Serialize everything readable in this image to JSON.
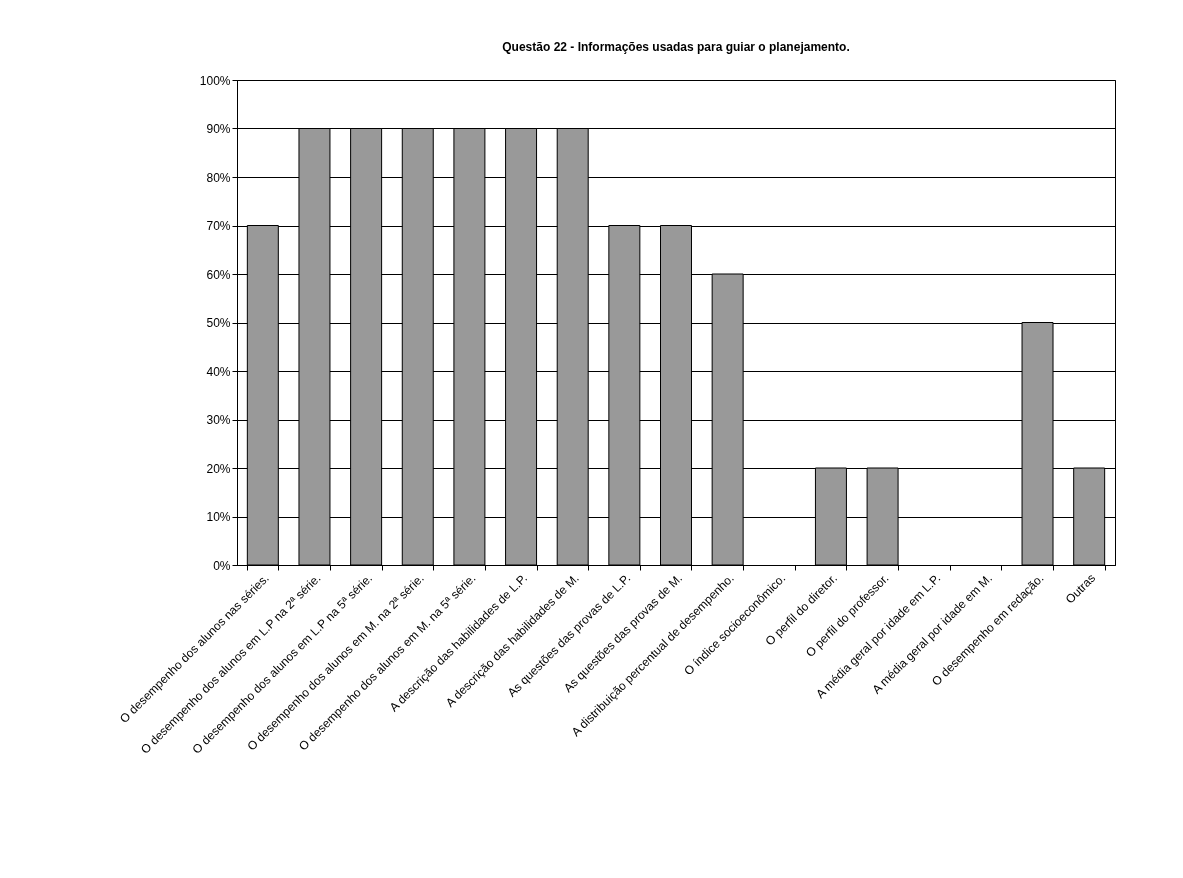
{
  "chart_data": {
    "type": "bar",
    "title": "Questão 22 - Informações usadas para guiar o planejamento.",
    "categories": [
      "O desempenho dos alunos nas séries.",
      "O desempenho dos alunos em L.P na 2ª série.",
      "O desempenho dos alunos em L.P na 5ª série.",
      "O desempenho dos alunos em M. na 2ª série.",
      "O desempenho dos alunos em M. na 5ª série.",
      "A descrição das habilidades de L.P.",
      "A descrição das habilidades de M.",
      "As questões das provas de L.P.",
      "As questões das provas de M.",
      "A distribuição percentual de desempenho.",
      "O índice socioeconômico.",
      "O perfil do diretor.",
      "O perfil do professor.",
      "A média geral por idade em L.P.",
      "A média geral por idade em M.",
      "O desempenho em redação.",
      "Outras"
    ],
    "values": [
      70,
      90,
      90,
      90,
      90,
      90,
      90,
      70,
      70,
      60,
      0,
      20,
      20,
      0,
      0,
      50,
      20
    ],
    "color": "#999999",
    "ylim": [
      0,
      100
    ],
    "yticks": [
      {
        "value": 0,
        "label": "0%"
      },
      {
        "value": 10,
        "label": "10%"
      },
      {
        "value": 20,
        "label": "20%"
      },
      {
        "value": 30,
        "label": "30%"
      },
      {
        "value": 40,
        "label": "40%"
      },
      {
        "value": 50,
        "label": "50%"
      },
      {
        "value": 60,
        "label": "60%"
      },
      {
        "value": 70,
        "label": "70%"
      },
      {
        "value": 80,
        "label": "80%"
      },
      {
        "value": 90,
        "label": "90%"
      },
      {
        "value": 100,
        "label": "100%"
      }
    ],
    "grid": "y"
  }
}
